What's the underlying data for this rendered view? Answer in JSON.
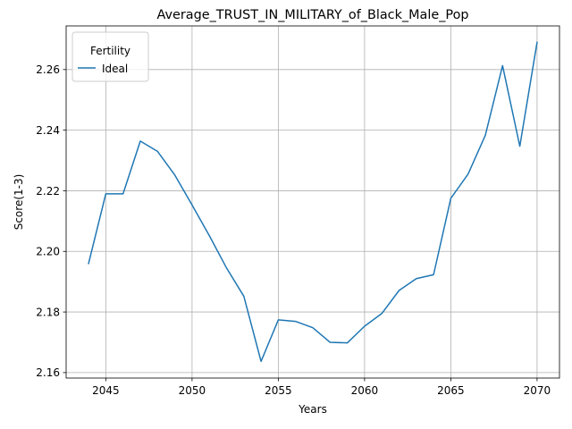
{
  "chart_data": {
    "type": "line",
    "title": "Average_TRUST_IN_MILITARY_of_Black_Male_Pop",
    "xlabel": "Years",
    "ylabel": "Score(1-3)",
    "xlim": [
      2042.7,
      2071.3
    ],
    "ylim": [
      2.1582,
      2.2744
    ],
    "xticks": [
      2045,
      2050,
      2055,
      2060,
      2065,
      2070
    ],
    "yticks": [
      2.16,
      2.18,
      2.2,
      2.22,
      2.24,
      2.26
    ],
    "ytick_labels": [
      "2.16",
      "2.18",
      "2.20",
      "2.22",
      "2.24",
      "2.26"
    ],
    "grid": true,
    "legend": {
      "title": "Fertility",
      "position": "top-left"
    },
    "series": [
      {
        "name": "Ideal",
        "color": "#1f77b4",
        "x": [
          2044,
          2045,
          2046,
          2047,
          2048,
          2049,
          2050,
          2051,
          2052,
          2053,
          2054,
          2055,
          2056,
          2057,
          2058,
          2059,
          2060,
          2061,
          2062,
          2063,
          2064,
          2065,
          2066,
          2067,
          2068,
          2069,
          2070
        ],
        "values": [
          2.196,
          2.219,
          2.219,
          2.2364,
          2.233,
          2.2252,
          2.2153,
          2.2052,
          2.1945,
          2.1852,
          2.1637,
          2.1774,
          2.1769,
          2.1748,
          2.17,
          2.1698,
          2.1753,
          2.1795,
          2.1871,
          2.191,
          2.1923,
          2.2175,
          2.2255,
          2.2383,
          2.2613,
          2.2347,
          2.269
        ]
      }
    ]
  }
}
